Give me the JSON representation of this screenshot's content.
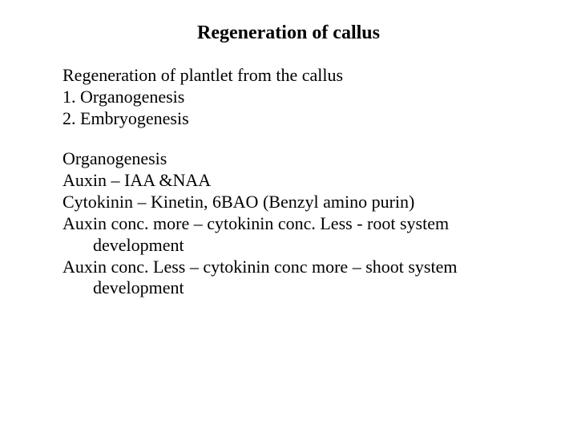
{
  "title": "Regeneration of callus",
  "intro": "Regeneration of plantlet from the callus",
  "list": {
    "item1": "1.  Organogenesis",
    "item2": "2.  Embryogenesis"
  },
  "section": {
    "heading": "Organogenesis",
    "line1": "Auxin – IAA &NAA",
    "line2": "Cytokinin – Kinetin, 6BAO (Benzyl amino purin)",
    "line3": "Auxin conc. more – cytokinin conc. Less  - root system development",
    "line4": "Auxin conc. Less – cytokinin conc more – shoot system development"
  }
}
